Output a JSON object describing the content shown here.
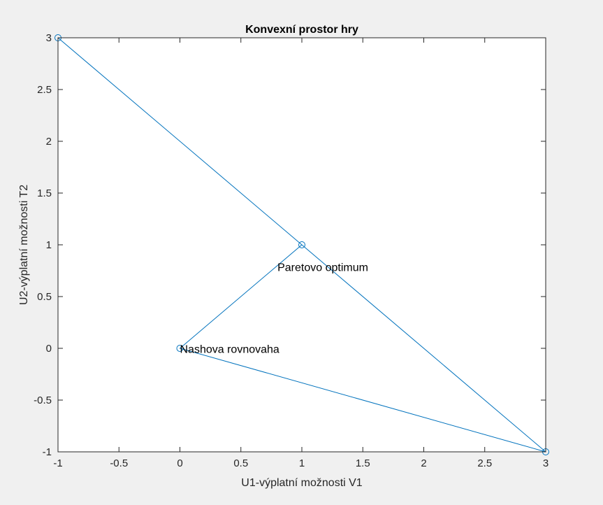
{
  "chart_data": {
    "type": "line",
    "title": "Konvexní prostor hry",
    "xlabel": "U1-výplatní možnosti V1",
    "ylabel": "U2-výplatní možnosti T2",
    "xlim": [
      -1,
      3
    ],
    "ylim": [
      -1,
      3
    ],
    "xticks": [
      -1,
      -0.5,
      0,
      0.5,
      1,
      1.5,
      2,
      2.5,
      3
    ],
    "yticks": [
      -1,
      -0.5,
      0,
      0.5,
      1,
      1.5,
      2,
      2.5,
      3
    ],
    "grid": false,
    "line_color": "#0072bd",
    "marker": "circle",
    "series": [
      {
        "x": [
          -1,
          1,
          0,
          3,
          1
        ],
        "y": [
          3,
          1,
          0,
          -1,
          1
        ]
      }
    ],
    "annotations": [
      {
        "text": "Paretovo optimum",
        "x": 0.8,
        "y": 0.78
      },
      {
        "text": "Nashova rovnovaha",
        "x": 0.0,
        "y": -0.01
      }
    ]
  }
}
